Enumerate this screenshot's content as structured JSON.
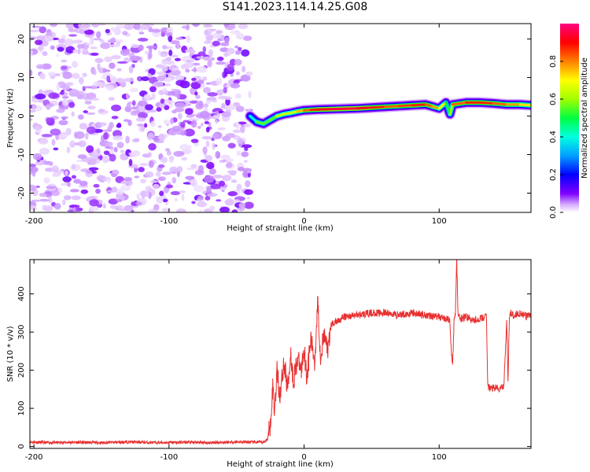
{
  "title": "S141.2023.114.14.25.G08",
  "chart_data": [
    {
      "type": "heatmap",
      "title": "S141.2023.114.14.25.G08",
      "xlabel": "Height of straight line (km)",
      "ylabel": "Frequency (Hz)",
      "xlim": [
        -203,
        168
      ],
      "ylim": [
        -25,
        24
      ],
      "x_ticks": [
        -200,
        -100,
        0,
        100
      ],
      "y_ticks": [
        -20,
        -10,
        0,
        10,
        20
      ],
      "x_tick_labels": [
        "-200",
        "-100",
        "0",
        "100"
      ],
      "y_tick_labels": [
        "-20",
        "-10",
        "0",
        "10",
        "20"
      ],
      "noise_region_x": [
        -203,
        -40
      ],
      "signal_ridge": {
        "x": [
          -40,
          -35,
          -30,
          -25,
          -20,
          -15,
          -10,
          -5,
          0,
          5,
          10,
          20,
          30,
          40,
          50,
          60,
          70,
          80,
          90,
          95,
          100,
          105,
          108,
          110,
          120,
          130,
          140,
          150,
          160,
          168
        ],
        "freq": [
          0.0,
          -1.5,
          -2.0,
          -1.0,
          0.0,
          0.5,
          0.8,
          1.2,
          1.5,
          1.6,
          1.7,
          1.8,
          1.9,
          2.0,
          2.2,
          2.4,
          2.6,
          2.8,
          3.0,
          2.5,
          2.0,
          3.5,
          0.5,
          3.0,
          3.5,
          3.5,
          3.3,
          3.0,
          3.0,
          2.8
        ],
        "amplitude": [
          0.3,
          0.5,
          0.6,
          0.5,
          0.6,
          0.7,
          0.6,
          0.7,
          0.8,
          0.85,
          0.9,
          0.95,
          0.95,
          0.95,
          0.9,
          0.85,
          0.8,
          0.9,
          0.85,
          0.8,
          0.75,
          0.6,
          0.4,
          0.8,
          0.85,
          0.9,
          0.85,
          0.8,
          0.75,
          0.7
        ]
      },
      "colorbar": {
        "label": "Normalized spectral amplitude",
        "range": [
          0,
          1
        ],
        "ticks": [
          0.0,
          0.2,
          0.4,
          0.6,
          0.8
        ],
        "tick_labels": [
          "0.0",
          "0.2",
          "0.4",
          "0.6",
          "0.8"
        ],
        "colormap": [
          "#ffffff",
          "#c080ff",
          "#7000ff",
          "#0000ff",
          "#00c0ff",
          "#00ff80",
          "#40ff00",
          "#ffff00",
          "#ff8000",
          "#ff0000",
          "#ff0080"
        ]
      }
    },
    {
      "type": "line",
      "xlabel": "Height of straight line (km)",
      "ylabel": "SNR (10 * v/v)",
      "xlim": [
        -203,
        168
      ],
      "ylim": [
        -5,
        490
      ],
      "x_ticks": [
        -200,
        -100,
        0,
        100
      ],
      "y_ticks": [
        0,
        100,
        200,
        300,
        400
      ],
      "x_tick_labels": [
        "-200",
        "-100",
        "0",
        "100"
      ],
      "y_tick_labels": [
        "0",
        "100",
        "200",
        "300",
        "400"
      ],
      "color": "#e83030",
      "series": [
        {
          "x": [
            -203,
            -190,
            -170,
            -150,
            -130,
            -110,
            -90,
            -70,
            -50,
            -30,
            -27,
            -25,
            -24,
            -23,
            -22,
            -20,
            -18,
            -15,
            -12,
            -10,
            -8,
            -5,
            -2,
            0,
            2,
            5,
            8,
            10,
            12,
            15,
            18,
            20,
            25,
            30,
            40,
            50,
            60,
            70,
            80,
            90,
            100,
            105,
            108,
            109,
            110,
            111,
            112,
            113,
            114,
            116,
            120,
            125,
            130,
            135,
            136,
            138,
            140,
            145,
            148,
            150,
            151,
            152,
            153,
            155,
            160,
            165,
            168
          ],
          "y": [
            12,
            10,
            11,
            10,
            12,
            10,
            11,
            10,
            12,
            11,
            20,
            60,
            120,
            160,
            90,
            200,
            130,
            220,
            150,
            250,
            170,
            230,
            200,
            260,
            180,
            280,
            220,
            390,
            240,
            290,
            250,
            320,
            330,
            340,
            345,
            350,
            350,
            345,
            350,
            345,
            340,
            335,
            330,
            250,
            210,
            330,
            350,
            490,
            340,
            335,
            340,
            330,
            335,
            340,
            160,
            150,
            155,
            150,
            160,
            330,
            170,
            340,
            350,
            345,
            350,
            340,
            345
          ]
        }
      ]
    }
  ]
}
